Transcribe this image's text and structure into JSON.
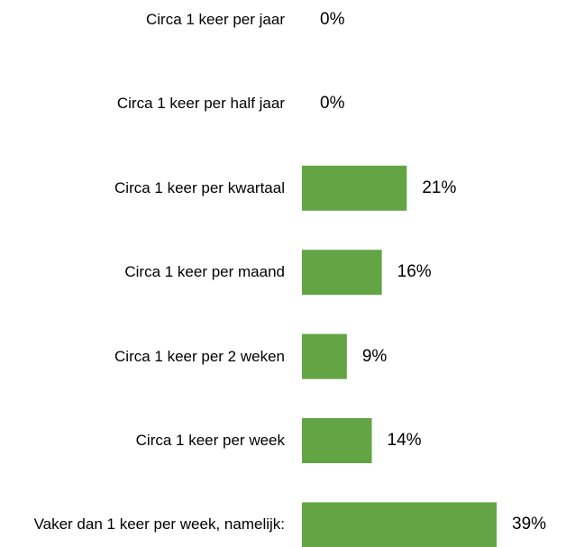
{
  "chart_data": {
    "type": "barh",
    "categories": [
      "Circa 1 keer per jaar",
      "Circa 1 keer per half jaar",
      "Circa 1 keer per kwartaal",
      "Circa 1 keer per maand",
      "Circa 1 keer per 2 weken",
      "Circa 1 keer per week",
      "Vaker dan 1 keer per week, namelijk:"
    ],
    "values": [
      0,
      0,
      21,
      16,
      9,
      14,
      39
    ],
    "value_labels": [
      "0%",
      "0%",
      "21%",
      "16%",
      "9%",
      "14%",
      "39%"
    ],
    "color": "#63a544"
  }
}
